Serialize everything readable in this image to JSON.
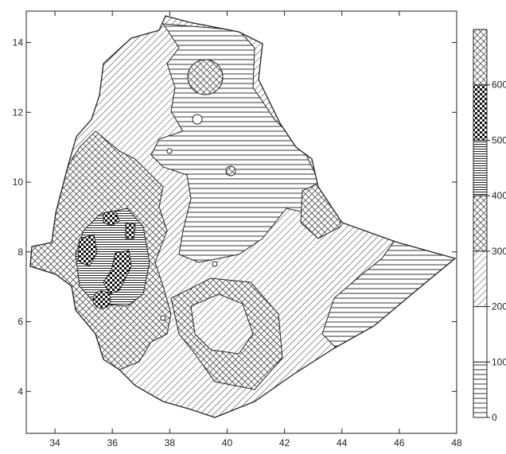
{
  "map": {
    "x_axis": {
      "min": 33,
      "max": 48,
      "ticks": [
        34,
        36,
        38,
        40,
        42,
        44,
        46,
        48
      ]
    },
    "y_axis": {
      "min": 2.8,
      "max": 14.9,
      "ticks": [
        4,
        6,
        8,
        10,
        12,
        14
      ]
    },
    "legend": {
      "placement": "right",
      "bands": [
        {
          "from": 0,
          "to": 100,
          "pattern": "horizontal-lines"
        },
        {
          "from": 100,
          "to": 200,
          "pattern": "blank"
        },
        {
          "from": 200,
          "to": 300,
          "pattern": "diagonal-lines"
        },
        {
          "from": 300,
          "to": 400,
          "pattern": "herringbone"
        },
        {
          "from": 400,
          "to": 500,
          "pattern": "dense-horizontal-lines"
        },
        {
          "from": 500,
          "to": 600,
          "pattern": "checkerboard"
        },
        {
          "from": 600,
          "to": 700,
          "pattern": "herringbone"
        }
      ],
      "tick_labels": [
        "0",
        "100",
        "200",
        "300",
        "400",
        "500",
        "600"
      ]
    },
    "colors": {
      "line": "#222222",
      "background": "#ffffff"
    }
  }
}
